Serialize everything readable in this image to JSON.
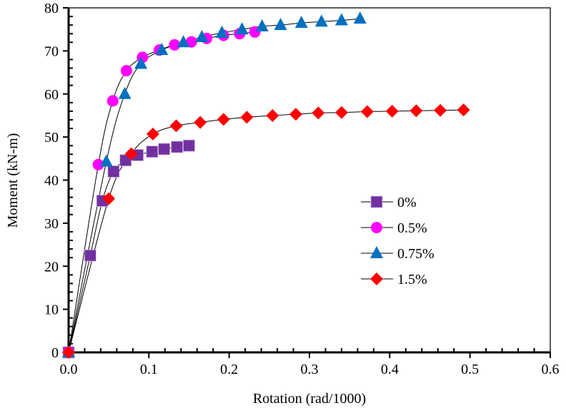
{
  "chart_data": {
    "type": "line",
    "title": "",
    "xlabel": "Rotation (rad/1000)",
    "ylabel": "Moment (kN-m)",
    "xlim": [
      0,
      0.6
    ],
    "ylim": [
      0,
      80
    ],
    "xticks": [
      "0.0",
      "0.1",
      "0.2",
      "0.3",
      "0.4",
      "0.5",
      "0.6"
    ],
    "yticks": [
      "0",
      "10",
      "20",
      "30",
      "40",
      "50",
      "60",
      "70",
      "80"
    ],
    "legend_position": "center-right",
    "series": [
      {
        "name": "0%",
        "color": "#7030A0",
        "marker": "square",
        "x": [
          0,
          0.027,
          0.042,
          0.056,
          0.071,
          0.086,
          0.104,
          0.119,
          0.135,
          0.15
        ],
        "y": [
          0,
          22.5,
          35.2,
          42.0,
          44.6,
          45.8,
          46.6,
          47.2,
          47.7,
          48.0
        ]
      },
      {
        "name": "0.5%",
        "color": "#FF00FF",
        "marker": "circle",
        "x": [
          0,
          0.037,
          0.055,
          0.072,
          0.092,
          0.113,
          0.132,
          0.153,
          0.172,
          0.193,
          0.213,
          0.232
        ],
        "y": [
          0,
          43.6,
          58.4,
          65.4,
          68.5,
          70.2,
          71.4,
          72.1,
          72.9,
          73.6,
          74.0,
          74.4
        ]
      },
      {
        "name": "0.75%",
        "color": "#0070C0",
        "marker": "triangle",
        "x": [
          0,
          0.047,
          0.07,
          0.09,
          0.116,
          0.143,
          0.166,
          0.191,
          0.216,
          0.241,
          0.264,
          0.29,
          0.315,
          0.34,
          0.363
        ],
        "y": [
          0,
          44.3,
          60.0,
          67.0,
          70.2,
          72.0,
          73.2,
          74.2,
          75.0,
          75.7,
          76.0,
          76.5,
          76.8,
          77.1,
          77.5
        ]
      },
      {
        "name": "1.5%",
        "color": "#FF0000",
        "marker": "diamond",
        "x": [
          0,
          0.05,
          0.078,
          0.105,
          0.134,
          0.164,
          0.193,
          0.222,
          0.254,
          0.283,
          0.311,
          0.34,
          0.372,
          0.403,
          0.433,
          0.463,
          0.492
        ],
        "y": [
          0,
          35.7,
          46.1,
          50.7,
          52.6,
          53.4,
          54.1,
          54.6,
          55.0,
          55.3,
          55.6,
          55.7,
          55.9,
          56.0,
          56.1,
          56.2,
          56.3
        ]
      }
    ]
  }
}
